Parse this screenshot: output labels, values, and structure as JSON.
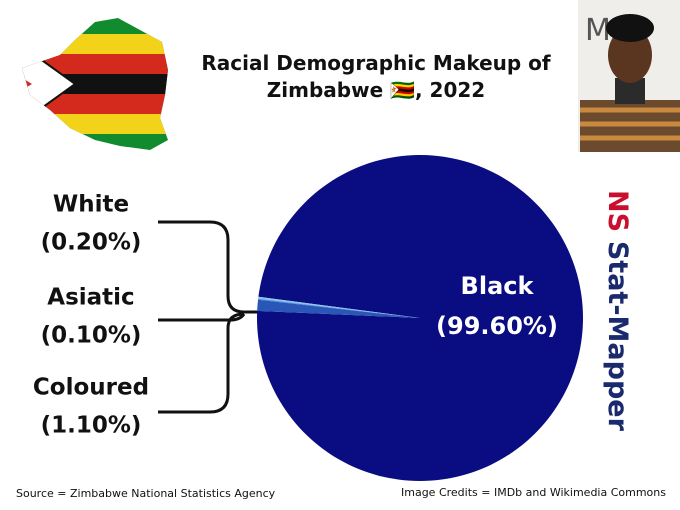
{
  "chart_data": {
    "type": "pie",
    "title": "Racial Demographic Makeup of Zimbabwe 🇿🇼, 2022",
    "categories": [
      "Black",
      "White",
      "Asiatic",
      "Coloured"
    ],
    "values": [
      99.6,
      0.2,
      0.1,
      1.1
    ],
    "value_labels": [
      "(99.60%)",
      "(0.20%)",
      "(0.10%)",
      "(1.10%)"
    ],
    "colors": [
      "#0a0c82",
      "#8cc4ee",
      "#4a8ad8",
      "#2a56b8"
    ],
    "source": "Source = Zimbabwe National Statistics Agency",
    "credits": "Image Credits = IMDb and Wikimedia Commons",
    "brand": {
      "prefix": "NS",
      "name": "Stat-Mapper"
    }
  }
}
